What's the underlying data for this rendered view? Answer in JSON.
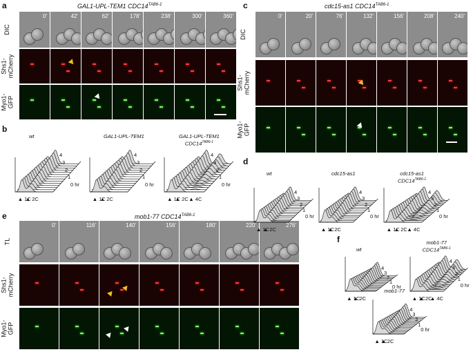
{
  "panels": {
    "a": {
      "label": "a",
      "title": "GAL1-UPL-TEM1 CDC14",
      "title_sup": "TAB6-1",
      "rows": [
        "DIC",
        "Shs1-\nmCherry",
        "Myo1-\nGFP"
      ],
      "times": [
        "0'",
        "42'",
        "62'",
        "178'",
        "238'",
        "300'",
        "360'"
      ]
    },
    "c": {
      "label": "c",
      "title": "cdc15-as1 CDC14",
      "title_sup": "TAB6-1",
      "rows": [
        "DIC",
        "Shs1-\nmCherry",
        "Myo1-\nGFP"
      ],
      "times": [
        "0'",
        "20'",
        "76'",
        "132'",
        "156'",
        "208'",
        "240'"
      ]
    },
    "e": {
      "label": "e",
      "title": "mob1-77 CDC14",
      "title_sup": "TAB6-1",
      "rows": [
        "TL",
        "Shs1-\nmCherry",
        "Myo1-\nGFP"
      ],
      "times": [
        "0'",
        "116'",
        "140'",
        "156'",
        "180'",
        "220'",
        "276'"
      ]
    },
    "b": {
      "label": "b",
      "histograms": [
        {
          "title": "wt",
          "sup": "",
          "ticks_c": [
            "1C",
            "2C"
          ],
          "hours": [
            "4",
            "3",
            "2",
            "1",
            "0 hr"
          ]
        },
        {
          "title": "GAL1-UPL-TEM1",
          "sup": "",
          "ticks_c": [
            "1C",
            "2C"
          ],
          "hours": [
            "4",
            "3",
            "2",
            "1",
            "0 hr"
          ]
        },
        {
          "title": "GAL1-UPL-TEM1\nCDC14",
          "sup": "TAB6-1",
          "ticks_c": [
            "1C",
            "2C",
            "4C"
          ],
          "hours": [
            "4",
            "3",
            "2",
            "1",
            "0 hr"
          ]
        }
      ]
    },
    "d": {
      "label": "d",
      "histograms": [
        {
          "title": "wt",
          "sup": "",
          "ticks_c": [
            "1C",
            "2C"
          ],
          "hours": [
            "4",
            "3",
            "2",
            "1",
            "0 hr"
          ]
        },
        {
          "title": "cdc15-as1",
          "sup": "",
          "ticks_c": [
            "1C",
            "2C"
          ],
          "hours": [
            "4",
            "3",
            "2",
            "1",
            "0 hr"
          ]
        },
        {
          "title": "cdc15-as1\nCDC14",
          "sup": "TAB6-1",
          "ticks_c": [
            "1C",
            "2C",
            "4C"
          ],
          "hours": [
            "4",
            "3",
            "2",
            "1",
            "0 hr"
          ]
        }
      ]
    },
    "f": {
      "label": "f",
      "histograms": [
        {
          "title": "wt",
          "sup": "",
          "ticks_c": [
            "1C",
            "2C"
          ],
          "hours": [
            "4",
            "3",
            "2",
            "1",
            "0 hr"
          ]
        },
        {
          "title": "mob1-77\nCDC14",
          "sup": "TAB6-1",
          "ticks_c": [
            "1C",
            "2C",
            "4C"
          ],
          "hours": [
            "4",
            "3",
            "2",
            "1",
            "0 hr"
          ]
        },
        {
          "title": "mob1-77",
          "sup": "",
          "ticks_c": [
            "1C",
            "2C"
          ],
          "hours": [
            "4",
            "3",
            "2",
            "1",
            "0 hr"
          ]
        }
      ]
    }
  },
  "colors": {
    "mcherry": "#ff3b3b",
    "gfp": "#7dff6a",
    "arrow_yellow": "#f0c020",
    "arrow_white": "#ffffff"
  }
}
